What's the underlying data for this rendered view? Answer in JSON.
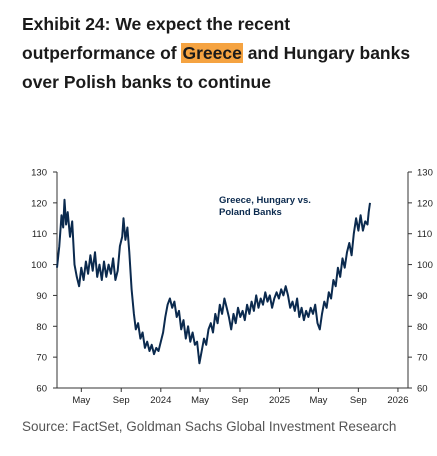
{
  "title": {
    "prefix": "Exhibit 24: We expect the recent outperformance of ",
    "highlight": "Greece",
    "suffix": " and Hungary banks over Polish banks to continue"
  },
  "source": "Source: FactSet, Goldman Sachs Global Investment Research",
  "colors": {
    "line": "#0b2a4e",
    "highlight": "#f5a341",
    "axis": "#333333"
  },
  "chart_data": {
    "type": "line",
    "annotation": "Greece, Hungary vs.\nPoland Banks",
    "xlim": [
      "2023-02-15",
      "2026-02-01"
    ],
    "ylim": [
      60,
      130
    ],
    "yticks": [
      60,
      70,
      80,
      90,
      100,
      110,
      120,
      130
    ],
    "xticks": [
      {
        "date": "2023-05-01",
        "label": "May"
      },
      {
        "date": "2023-09-01",
        "label": "Sep"
      },
      {
        "date": "2024-01-01",
        "label": "2024"
      },
      {
        "date": "2024-05-01",
        "label": "May"
      },
      {
        "date": "2024-09-01",
        "label": "Sep"
      },
      {
        "date": "2025-01-01",
        "label": "2025"
      },
      {
        "date": "2025-05-01",
        "label": "May"
      },
      {
        "date": "2025-09-01",
        "label": "Sep"
      },
      {
        "date": "2026-01-01",
        "label": "2026"
      }
    ],
    "series": [
      {
        "points": [
          [
            "2023-02-15",
            99
          ],
          [
            "2023-02-22",
            106
          ],
          [
            "2023-03-01",
            116
          ],
          [
            "2023-03-06",
            112
          ],
          [
            "2023-03-10",
            121
          ],
          [
            "2023-03-15",
            113
          ],
          [
            "2023-03-20",
            117
          ],
          [
            "2023-03-27",
            109
          ],
          [
            "2023-04-03",
            114
          ],
          [
            "2023-04-10",
            100
          ],
          [
            "2023-04-17",
            96
          ],
          [
            "2023-04-24",
            93
          ],
          [
            "2023-05-01",
            99
          ],
          [
            "2023-05-08",
            95
          ],
          [
            "2023-05-15",
            101
          ],
          [
            "2023-05-22",
            97
          ],
          [
            "2023-05-29",
            103
          ],
          [
            "2023-06-05",
            98
          ],
          [
            "2023-06-12",
            104
          ],
          [
            "2023-06-19",
            96
          ],
          [
            "2023-06-26",
            100
          ],
          [
            "2023-07-03",
            95
          ],
          [
            "2023-07-10",
            101
          ],
          [
            "2023-07-17",
            96
          ],
          [
            "2023-07-24",
            100
          ],
          [
            "2023-07-31",
            97
          ],
          [
            "2023-08-07",
            102
          ],
          [
            "2023-08-14",
            95
          ],
          [
            "2023-08-21",
            98
          ],
          [
            "2023-08-28",
            106
          ],
          [
            "2023-09-04",
            109
          ],
          [
            "2023-09-08",
            115
          ],
          [
            "2023-09-14",
            108
          ],
          [
            "2023-09-20",
            112
          ],
          [
            "2023-09-26",
            104
          ],
          [
            "2023-10-03",
            92
          ],
          [
            "2023-10-10",
            84
          ],
          [
            "2023-10-16",
            79
          ],
          [
            "2023-10-23",
            81
          ],
          [
            "2023-10-30",
            76
          ],
          [
            "2023-11-06",
            78
          ],
          [
            "2023-11-13",
            73
          ],
          [
            "2023-11-20",
            75
          ],
          [
            "2023-11-27",
            72
          ],
          [
            "2023-12-04",
            74
          ],
          [
            "2023-12-11",
            71
          ],
          [
            "2023-12-18",
            73
          ],
          [
            "2023-12-25",
            72
          ],
          [
            "2024-01-01",
            75
          ],
          [
            "2024-01-08",
            78
          ],
          [
            "2024-01-15",
            83
          ],
          [
            "2024-01-22",
            87
          ],
          [
            "2024-01-29",
            89
          ],
          [
            "2024-02-05",
            86
          ],
          [
            "2024-02-12",
            88
          ],
          [
            "2024-02-19",
            83
          ],
          [
            "2024-02-26",
            85
          ],
          [
            "2024-03-04",
            79
          ],
          [
            "2024-03-11",
            82
          ],
          [
            "2024-03-18",
            76
          ],
          [
            "2024-03-25",
            80
          ],
          [
            "2024-04-01",
            75
          ],
          [
            "2024-04-08",
            78
          ],
          [
            "2024-04-15",
            74
          ],
          [
            "2024-04-22",
            75
          ],
          [
            "2024-04-29",
            68
          ],
          [
            "2024-05-06",
            72
          ],
          [
            "2024-05-13",
            76
          ],
          [
            "2024-05-20",
            74
          ],
          [
            "2024-05-27",
            79
          ],
          [
            "2024-06-03",
            81
          ],
          [
            "2024-06-10",
            78
          ],
          [
            "2024-06-17",
            84
          ],
          [
            "2024-06-24",
            81
          ],
          [
            "2024-07-01",
            87
          ],
          [
            "2024-07-08",
            84
          ],
          [
            "2024-07-15",
            89
          ],
          [
            "2024-07-22",
            86
          ],
          [
            "2024-07-29",
            83
          ],
          [
            "2024-08-05",
            79
          ],
          [
            "2024-08-12",
            84
          ],
          [
            "2024-08-19",
            81
          ],
          [
            "2024-08-26",
            86
          ],
          [
            "2024-09-02",
            83
          ],
          [
            "2024-09-09",
            85
          ],
          [
            "2024-09-16",
            82
          ],
          [
            "2024-09-23",
            87
          ],
          [
            "2024-09-30",
            84
          ],
          [
            "2024-10-07",
            88
          ],
          [
            "2024-10-14",
            85
          ],
          [
            "2024-10-21",
            90
          ],
          [
            "2024-10-28",
            86
          ],
          [
            "2024-11-04",
            89
          ],
          [
            "2024-11-11",
            87
          ],
          [
            "2024-11-18",
            91
          ],
          [
            "2024-11-25",
            88
          ],
          [
            "2024-12-02",
            90
          ],
          [
            "2024-12-09",
            86
          ],
          [
            "2024-12-16",
            89
          ],
          [
            "2024-12-23",
            91
          ],
          [
            "2024-12-30",
            89
          ],
          [
            "2025-01-06",
            92
          ],
          [
            "2025-01-13",
            90
          ],
          [
            "2025-01-20",
            93
          ],
          [
            "2025-01-27",
            90
          ],
          [
            "2025-02-03",
            86
          ],
          [
            "2025-02-10",
            88
          ],
          [
            "2025-02-17",
            85
          ],
          [
            "2025-02-24",
            89
          ],
          [
            "2025-03-03",
            83
          ],
          [
            "2025-03-10",
            86
          ],
          [
            "2025-03-17",
            82
          ],
          [
            "2025-03-24",
            85
          ],
          [
            "2025-03-31",
            83
          ],
          [
            "2025-04-07",
            86
          ],
          [
            "2025-04-14",
            84
          ],
          [
            "2025-04-21",
            87
          ],
          [
            "2025-04-28",
            81
          ],
          [
            "2025-05-05",
            79
          ],
          [
            "2025-05-12",
            84
          ],
          [
            "2025-05-19",
            88
          ],
          [
            "2025-05-26",
            86
          ],
          [
            "2025-06-02",
            91
          ],
          [
            "2025-06-09",
            89
          ],
          [
            "2025-06-16",
            95
          ],
          [
            "2025-06-23",
            93
          ],
          [
            "2025-06-30",
            99
          ],
          [
            "2025-07-07",
            96
          ],
          [
            "2025-07-14",
            102
          ],
          [
            "2025-07-21",
            99
          ],
          [
            "2025-07-28",
            104
          ],
          [
            "2025-08-04",
            107
          ],
          [
            "2025-08-11",
            103
          ],
          [
            "2025-08-18",
            110
          ],
          [
            "2025-08-25",
            115
          ],
          [
            "2025-09-01",
            111
          ],
          [
            "2025-09-08",
            116
          ],
          [
            "2025-09-15",
            111
          ],
          [
            "2025-09-22",
            114
          ],
          [
            "2025-09-29",
            113
          ],
          [
            "2025-10-03",
            117
          ],
          [
            "2025-10-07",
            120
          ]
        ]
      }
    ],
    "right_axis_mirror": true,
    "grid": false
  }
}
